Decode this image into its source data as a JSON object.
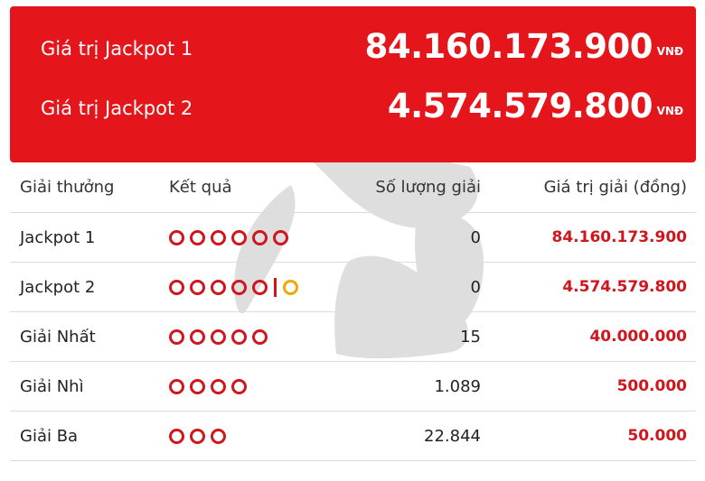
{
  "jackpot": {
    "items": [
      {
        "label": "Giá trị Jackpot 1",
        "amount": "84.160.173.900",
        "currency": "VNĐ"
      },
      {
        "label": "Giá trị Jackpot 2",
        "amount": "4.574.579.800",
        "currency": "VNĐ"
      }
    ]
  },
  "table": {
    "headers": {
      "prize": "Giải thưởng",
      "result": "Kết quả",
      "count": "Số lượng giải",
      "value": "Giá trị giải (đồng)"
    },
    "rows": [
      {
        "prize": "Jackpot 1",
        "count": "0",
        "value": "84.160.173.900"
      },
      {
        "prize": "Jackpot 2",
        "count": "0",
        "value": "4.574.579.800"
      },
      {
        "prize": "Giải Nhất",
        "count": "15",
        "value": "40.000.000"
      },
      {
        "prize": "Giải Nhì",
        "count": "1.089",
        "value": "500.000"
      },
      {
        "prize": "Giải Ba",
        "count": "22.844",
        "value": "50.000"
      }
    ]
  },
  "colors": {
    "brand_red": "#e5151c",
    "value_red": "#d0151c",
    "special_ball": "#f0a800",
    "watermark": "#dedede"
  }
}
